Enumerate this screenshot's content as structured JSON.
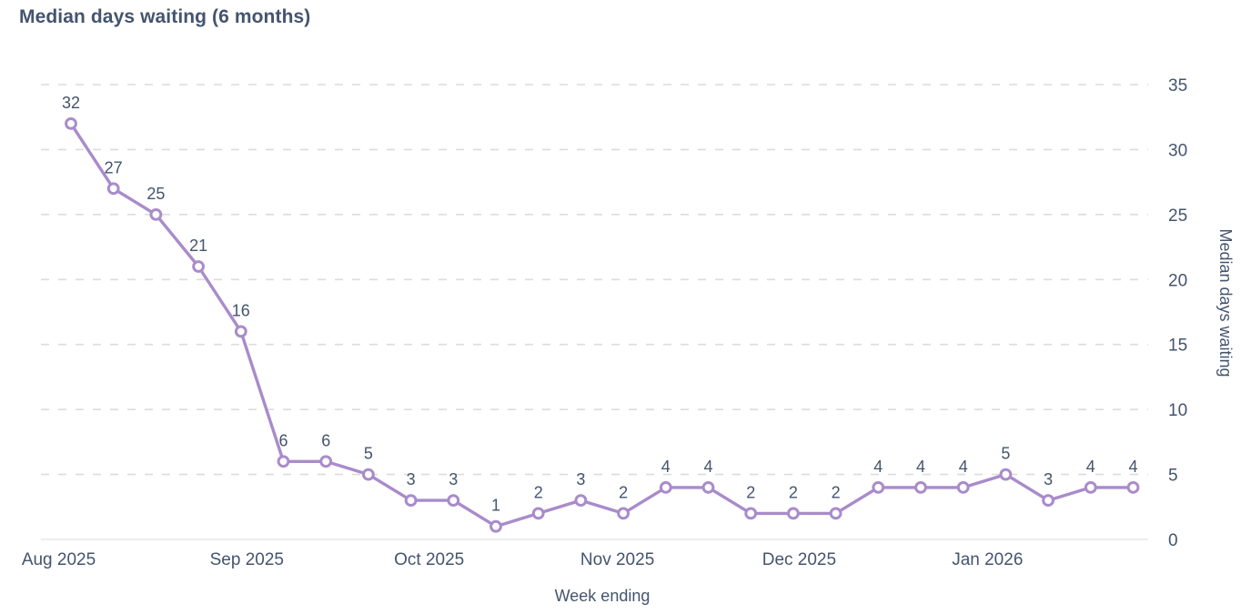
{
  "title": "Median days waiting (6 months)",
  "chart_data": {
    "type": "line",
    "series": [
      {
        "name": "Median days waiting",
        "values": [
          32,
          27,
          25,
          21,
          16,
          6,
          6,
          5,
          3,
          3,
          1,
          2,
          3,
          2,
          4,
          4,
          2,
          2,
          2,
          4,
          4,
          4,
          5,
          3,
          4,
          4
        ]
      }
    ],
    "data_labels_shown": true,
    "x_ticks": [
      {
        "label": "Aug 2025",
        "pos": -0.29
      },
      {
        "label": "Sep 2025",
        "pos": 4.14
      },
      {
        "label": "Oct 2025",
        "pos": 8.43
      },
      {
        "label": "Nov 2025",
        "pos": 12.86
      },
      {
        "label": "Dec 2025",
        "pos": 17.14
      },
      {
        "label": "Jan 2026",
        "pos": 21.57
      }
    ],
    "y_ticks": [
      0,
      5,
      10,
      15,
      20,
      25,
      30,
      35
    ],
    "ylim": [
      0,
      35
    ],
    "xlabel": "Week ending",
    "ylabel": "Median days waiting",
    "grid": "horizontal-dashed",
    "legend": "none",
    "colors": {
      "line": "#a98bcb",
      "marker_fill": "#ffffff",
      "text": "#44546e",
      "grid": "#dcdcdc",
      "baseline": "#e7e7e7",
      "background": "#ffffff"
    }
  }
}
